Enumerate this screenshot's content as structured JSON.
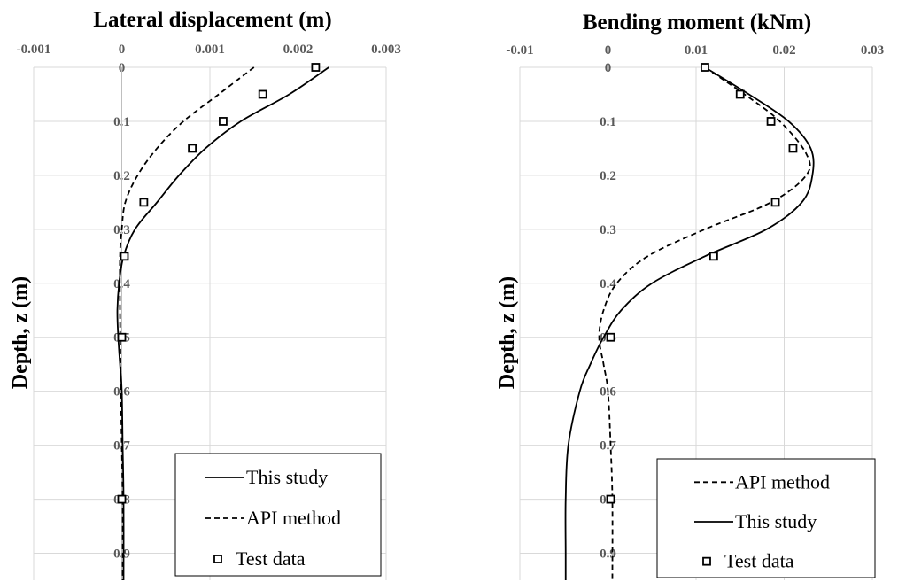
{
  "chart_data": [
    {
      "type": "line",
      "title": "Lateral displacement (m)",
      "xlabel": "",
      "ylabel": "Depth, z (m)",
      "xlim": [
        -0.001,
        0.003
      ],
      "ylim": [
        0,
        0.95
      ],
      "y_inverted": true,
      "x_ticks": [
        "-0.001",
        "0",
        "0.001",
        "0.002",
        "0.003"
      ],
      "y_ticks": [
        "0",
        "0.1",
        "0.2",
        "0.3",
        "0.4",
        "0.5",
        "0.6",
        "0.7",
        "0.8",
        "0.9"
      ],
      "grid": true,
      "legend_position": "bottom-right",
      "series": [
        {
          "name": "This study",
          "style": "solid",
          "color": "#000000",
          "points": [
            [
              0.00235,
              0
            ],
            [
              0.0019,
              0.05
            ],
            [
              0.00135,
              0.1
            ],
            [
              0.00095,
              0.15
            ],
            [
              0.00065,
              0.2
            ],
            [
              0.0004,
              0.25
            ],
            [
              0.00015,
              0.3
            ],
            [
              2e-05,
              0.35
            ],
            [
              -3e-05,
              0.4
            ],
            [
              -5e-05,
              0.45
            ],
            [
              -4e-05,
              0.5
            ],
            [
              -2e-05,
              0.55
            ],
            [
              0,
              0.6
            ],
            [
              1e-05,
              0.7
            ],
            [
              2e-05,
              0.8
            ],
            [
              2e-05,
              0.95
            ]
          ]
        },
        {
          "name": "API method",
          "style": "dashed",
          "color": "#000000",
          "points": [
            [
              0.0015,
              0
            ],
            [
              0.0011,
              0.05
            ],
            [
              0.0007,
              0.1
            ],
            [
              0.0004,
              0.15
            ],
            [
              0.00018,
              0.2
            ],
            [
              4e-05,
              0.25
            ],
            [
              0,
              0.3
            ],
            [
              -2e-05,
              0.35
            ],
            [
              -2e-05,
              0.45
            ],
            [
              -1e-05,
              0.6
            ],
            [
              0,
              0.7
            ],
            [
              1e-05,
              0.8
            ],
            [
              1e-05,
              0.95
            ]
          ]
        },
        {
          "name": "Test data",
          "style": "marker",
          "marker": "square",
          "color": "#000000",
          "points": [
            [
              0.0022,
              0
            ],
            [
              0.0016,
              0.05
            ],
            [
              0.00115,
              0.1
            ],
            [
              0.0008,
              0.15
            ],
            [
              0.00025,
              0.25
            ],
            [
              3e-05,
              0.35
            ],
            [
              0.0,
              0.5
            ],
            [
              0.0,
              0.8
            ]
          ]
        }
      ],
      "legend_order": [
        "This study",
        "API method",
        "Test data"
      ]
    },
    {
      "type": "line",
      "title": "Bending moment (kNm)",
      "xlabel": "",
      "ylabel": "Depth, z (m)",
      "xlim": [
        -0.01,
        0.03
      ],
      "ylim": [
        0,
        0.95
      ],
      "y_inverted": true,
      "x_ticks": [
        "-0.01",
        "0",
        "0.01",
        "0.02",
        "0.03"
      ],
      "y_ticks": [
        "0",
        "0.1",
        "0.2",
        "0.3",
        "0.4",
        "0.5",
        "0.6",
        "0.7",
        "0.8",
        "0.9"
      ],
      "grid": true,
      "legend_position": "bottom-right",
      "series": [
        {
          "name": "API method",
          "style": "dashed",
          "color": "#000000",
          "points": [
            [
              0.011,
              0
            ],
            [
              0.0155,
              0.05
            ],
            [
              0.0195,
              0.1
            ],
            [
              0.0225,
              0.16
            ],
            [
              0.0225,
              0.2
            ],
            [
              0.0185,
              0.25
            ],
            [
              0.011,
              0.3
            ],
            [
              0.0045,
              0.35
            ],
            [
              0.001,
              0.4
            ],
            [
              -0.0005,
              0.45
            ],
            [
              -0.001,
              0.5
            ],
            [
              -0.0005,
              0.55
            ],
            [
              0,
              0.6
            ],
            [
              0.0003,
              0.7
            ],
            [
              0.0005,
              0.8
            ],
            [
              0.0005,
              0.95
            ]
          ]
        },
        {
          "name": "This study",
          "style": "solid",
          "color": "#000000",
          "points": [
            [
              0.011,
              0
            ],
            [
              0.016,
              0.05
            ],
            [
              0.0205,
              0.1
            ],
            [
              0.023,
              0.15
            ],
            [
              0.0232,
              0.2
            ],
            [
              0.022,
              0.25
            ],
            [
              0.018,
              0.3
            ],
            [
              0.011,
              0.35
            ],
            [
              0.005,
              0.4
            ],
            [
              0.0015,
              0.45
            ],
            [
              -0.0005,
              0.5
            ],
            [
              -0.002,
              0.55
            ],
            [
              -0.0032,
              0.6
            ],
            [
              -0.0045,
              0.7
            ],
            [
              -0.0048,
              0.8
            ],
            [
              -0.0048,
              0.9
            ],
            [
              -0.0048,
              0.95
            ]
          ]
        },
        {
          "name": "Test data",
          "style": "marker",
          "marker": "square",
          "color": "#000000",
          "points": [
            [
              0.011,
              0
            ],
            [
              0.015,
              0.05
            ],
            [
              0.0185,
              0.1
            ],
            [
              0.021,
              0.15
            ],
            [
              0.019,
              0.25
            ],
            [
              0.012,
              0.35
            ],
            [
              0.0003,
              0.5
            ],
            [
              0.0003,
              0.8
            ]
          ]
        }
      ],
      "legend_order": [
        "API method",
        "This study",
        "Test data"
      ]
    }
  ]
}
